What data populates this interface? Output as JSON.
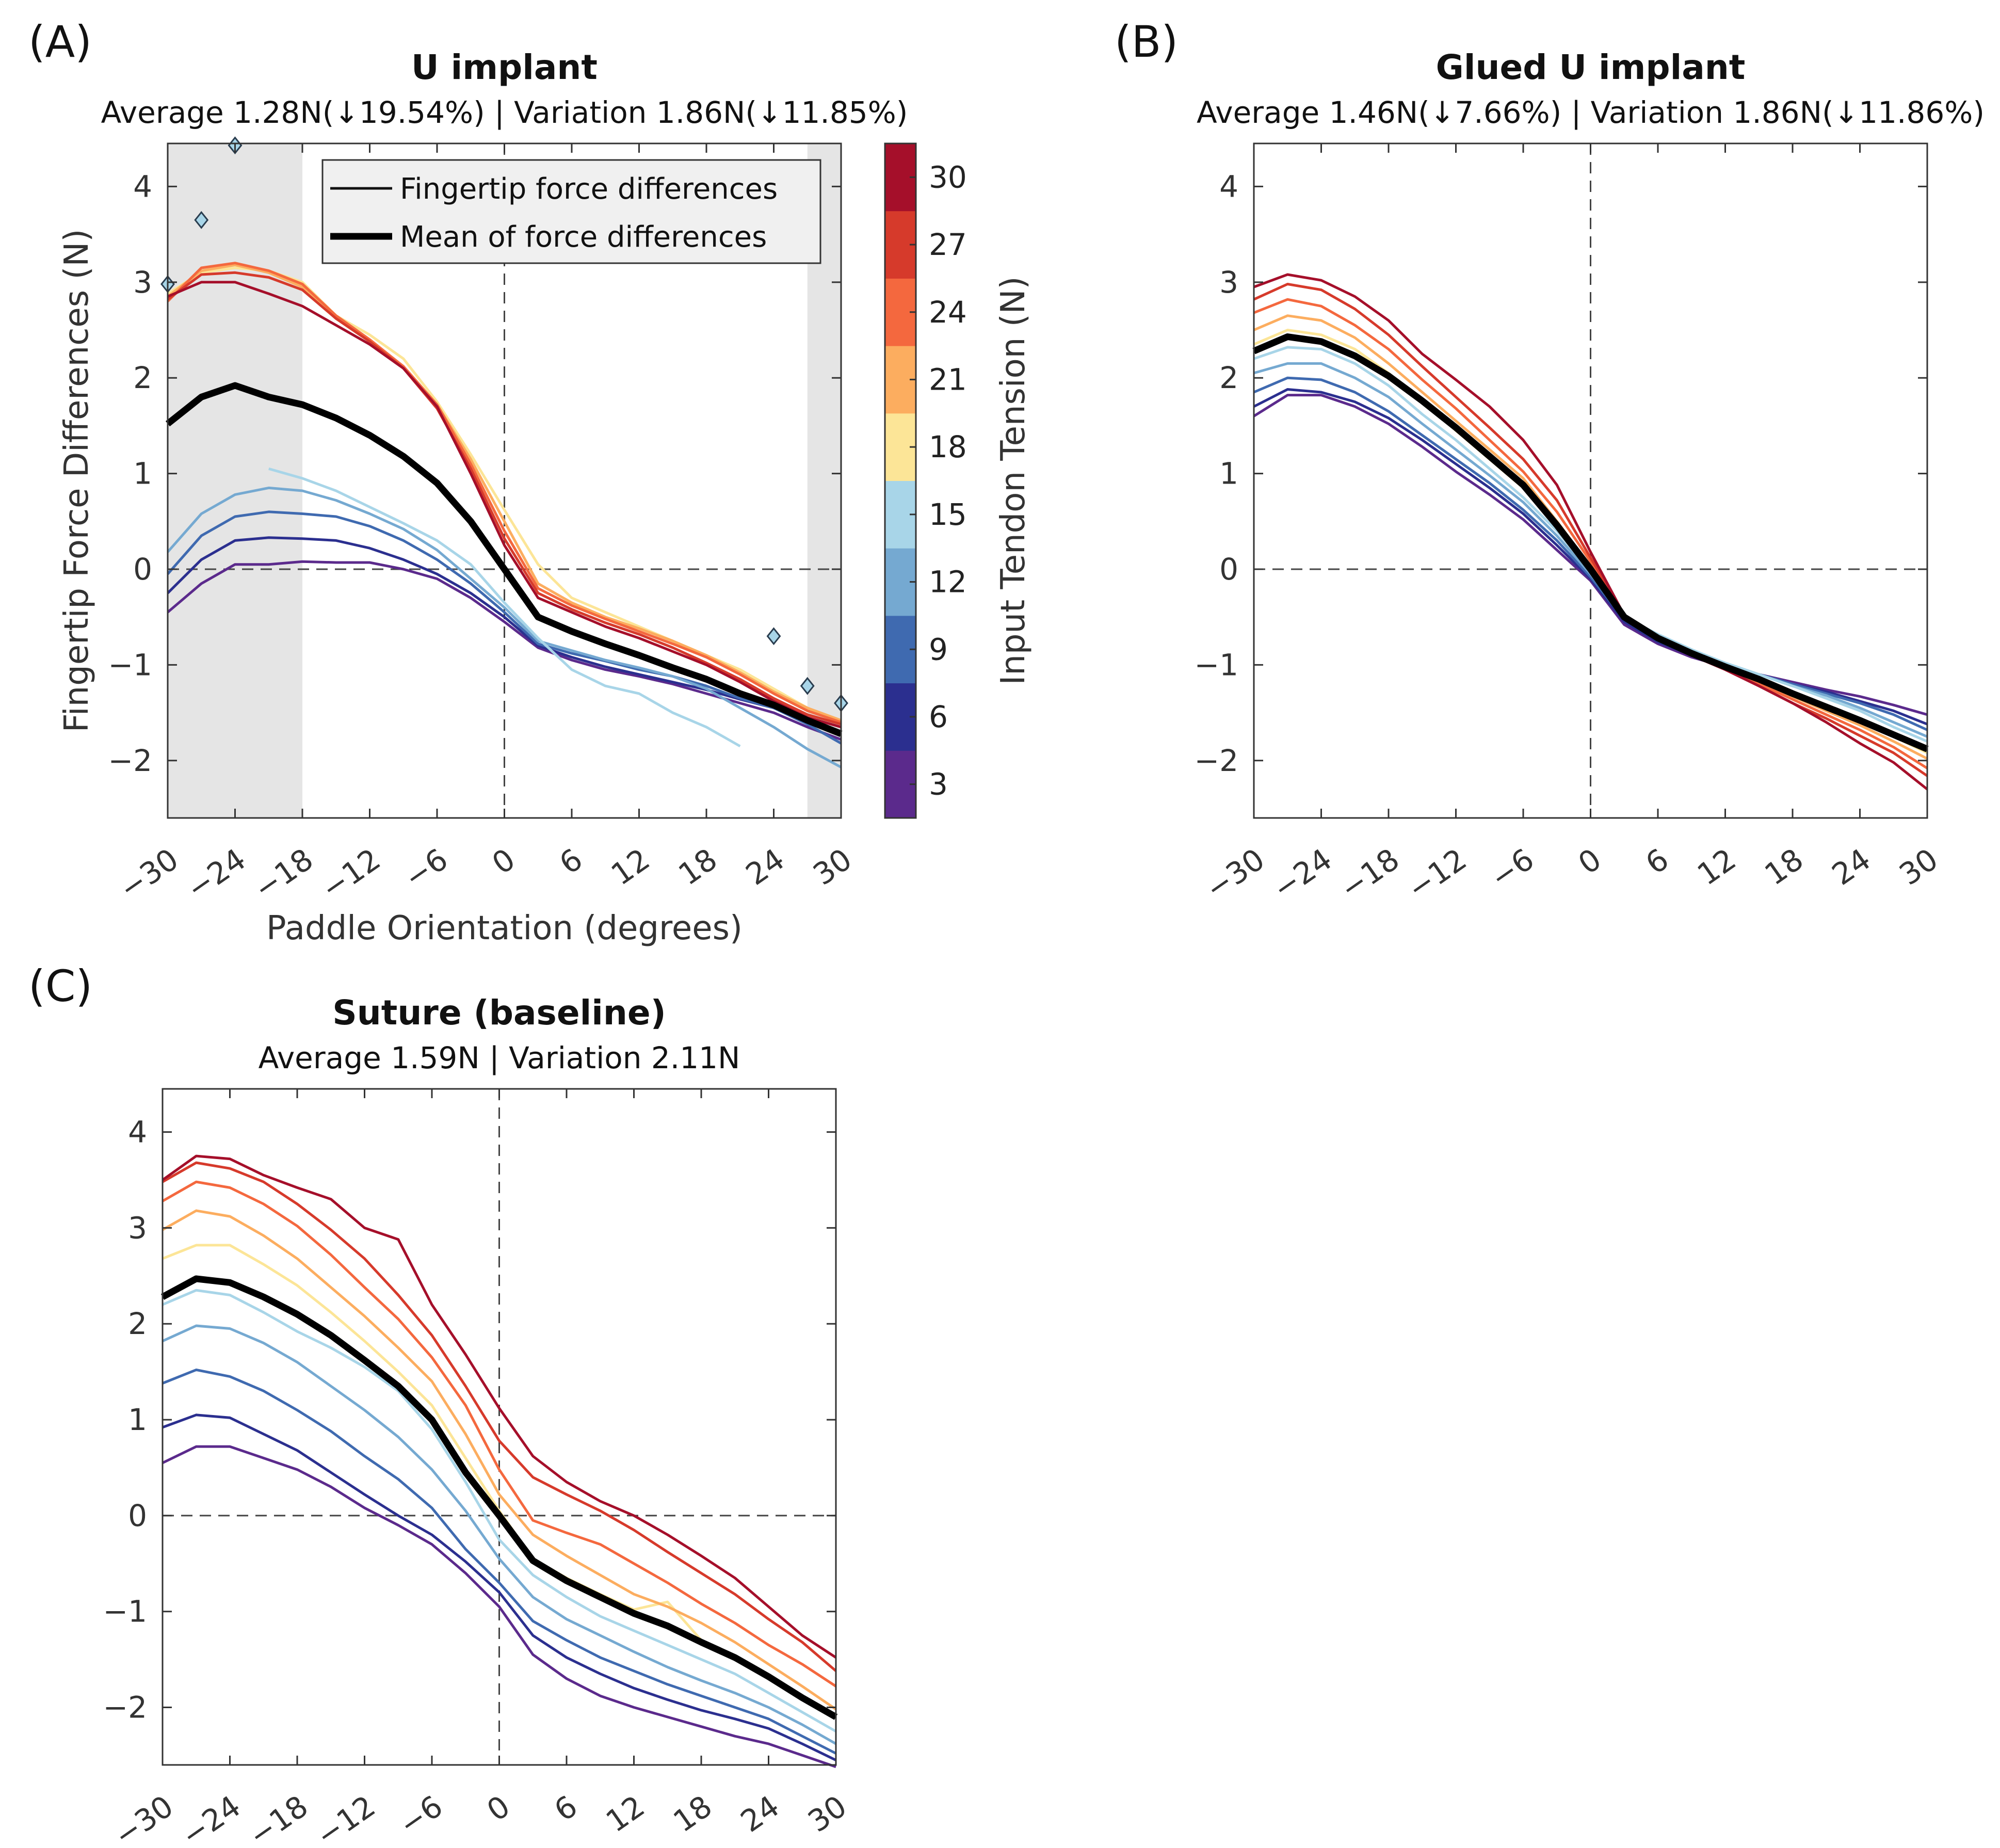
{
  "figure": {
    "colorbar": {
      "label": "Input Tendon Tension (N)",
      "ticks": [
        3,
        6,
        9,
        12,
        15,
        18,
        21,
        24,
        27,
        30
      ],
      "range": [
        1.5,
        31.5
      ],
      "colors": [
        "#5b2a8c",
        "#2b2f8f",
        "#3f6ab0",
        "#75a9d1",
        "#a8d5e8",
        "#fce597",
        "#fcad5f",
        "#f4683e",
        "#d63a2b",
        "#a50f2a"
      ]
    },
    "legend": {
      "thin": "Fingertip force differences",
      "thick": "Mean of force differences"
    },
    "axis_common": {
      "ylabel": "Fingertip Force Differences (N)",
      "xlabel": "Paddle Orientation (degrees)",
      "xticks": [
        "−30",
        "−24",
        "−18",
        "−12",
        "−6",
        "0",
        "6",
        "12",
        "18",
        "24",
        "30"
      ],
      "yticks": [
        "−2",
        "−1",
        "0",
        "1",
        "2",
        "3",
        "4"
      ]
    }
  },
  "chart_data": [
    {
      "type": "line",
      "panel": "(A)",
      "title": "U implant",
      "subtitle": "Average 1.28N(↓19.54%) | Variation 1.86N(↓11.85%)",
      "xlabel": "Paddle Orientation (degrees)",
      "ylabel": "Fingertip Force Differences (N)",
      "xlim": [
        -30,
        30
      ],
      "ylim": [
        -2.6,
        4.45
      ],
      "shaded_x_ranges": [
        [
          -30,
          -18
        ],
        [
          27,
          30
        ]
      ],
      "x": [
        -30,
        -27,
        -24,
        -21,
        -18,
        -15,
        -12,
        -9,
        -6,
        -3,
        0,
        3,
        6,
        9,
        12,
        15,
        18,
        21,
        24,
        27,
        30
      ],
      "series": [
        {
          "name": "3N",
          "tension": 3,
          "values": [
            -0.45,
            -0.15,
            0.05,
            0.05,
            0.08,
            0.07,
            0.07,
            0.0,
            -0.1,
            -0.3,
            -0.55,
            -0.82,
            -0.95,
            -1.05,
            -1.12,
            -1.2,
            -1.3,
            -1.4,
            -1.5,
            -1.65,
            -1.78
          ]
        },
        {
          "name": "6N",
          "tension": 6,
          "values": [
            -0.25,
            0.1,
            0.3,
            0.33,
            0.32,
            0.3,
            0.22,
            0.1,
            -0.05,
            -0.25,
            -0.5,
            -0.8,
            -0.92,
            -1.02,
            -1.1,
            -1.18,
            -1.26,
            -1.36,
            -1.45,
            -1.6,
            -1.72
          ]
        },
        {
          "name": "9N",
          "tension": 9,
          "values": [
            -0.05,
            0.35,
            0.55,
            0.6,
            0.58,
            0.55,
            0.45,
            0.3,
            0.1,
            -0.15,
            -0.45,
            -0.78,
            -0.88,
            -0.96,
            -1.05,
            -1.12,
            -1.22,
            -1.35,
            -1.45,
            -1.62,
            -1.82
          ]
        },
        {
          "name": "12N",
          "tension": 12,
          "values": [
            0.18,
            0.58,
            0.78,
            0.85,
            0.82,
            0.72,
            0.58,
            0.42,
            0.2,
            -0.1,
            -0.4,
            -0.75,
            -0.85,
            -0.95,
            -1.03,
            -1.12,
            -1.25,
            -1.45,
            -1.65,
            -1.88,
            -2.07
          ]
        },
        {
          "name": "15N",
          "tension": 15,
          "values": [
            null,
            null,
            null,
            1.05,
            0.95,
            0.82,
            0.65,
            0.48,
            0.3,
            0.05,
            -0.35,
            -0.72,
            -1.05,
            -1.22,
            -1.3,
            -1.5,
            -1.65,
            -1.85,
            null,
            null,
            null
          ]
        },
        {
          "name": "18N",
          "tension": 18,
          "values": [
            2.88,
            3.1,
            3.15,
            3.12,
            3.0,
            2.65,
            2.45,
            2.2,
            1.75,
            1.2,
            0.62,
            0.05,
            -0.3,
            -0.45,
            -0.6,
            -0.75,
            -0.9,
            -1.05,
            -1.25,
            -1.45,
            -1.6
          ]
        },
        {
          "name": "21N",
          "tension": 21,
          "values": [
            2.85,
            3.12,
            3.18,
            3.1,
            2.95,
            2.62,
            2.38,
            2.12,
            1.72,
            1.15,
            0.5,
            -0.15,
            -0.35,
            -0.5,
            -0.62,
            -0.75,
            -0.9,
            -1.08,
            -1.28,
            -1.45,
            -1.58
          ]
        },
        {
          "name": "24N",
          "tension": 24,
          "values": [
            2.8,
            3.15,
            3.2,
            3.12,
            2.98,
            2.65,
            2.4,
            2.12,
            1.72,
            1.1,
            0.4,
            -0.2,
            -0.38,
            -0.52,
            -0.65,
            -0.78,
            -0.92,
            -1.1,
            -1.3,
            -1.48,
            -1.6
          ]
        },
        {
          "name": "27N",
          "tension": 27,
          "values": [
            2.82,
            3.08,
            3.1,
            3.05,
            2.92,
            2.62,
            2.38,
            2.1,
            1.68,
            1.05,
            0.32,
            -0.25,
            -0.42,
            -0.56,
            -0.68,
            -0.82,
            -0.98,
            -1.15,
            -1.35,
            -1.52,
            -1.62
          ]
        },
        {
          "name": "30N",
          "tension": 30,
          "values": [
            2.85,
            3.0,
            3.0,
            2.88,
            2.75,
            2.55,
            2.35,
            2.1,
            1.7,
            1.0,
            0.25,
            -0.3,
            -0.45,
            -0.6,
            -0.72,
            -0.86,
            -1.0,
            -1.18,
            -1.38,
            -1.55,
            -1.65
          ]
        }
      ],
      "mean": [
        1.52,
        1.8,
        1.92,
        1.8,
        1.72,
        1.58,
        1.4,
        1.18,
        0.9,
        0.5,
        0.0,
        -0.5,
        -0.65,
        -0.78,
        -0.9,
        -1.03,
        -1.15,
        -1.3,
        -1.42,
        -1.58,
        -1.72
      ],
      "outliers": [
        [
          -30,
          2.98
        ],
        [
          -27,
          3.65
        ],
        [
          -24,
          4.43
        ],
        [
          24,
          -0.7
        ],
        [
          27,
          -1.22
        ],
        [
          30,
          -1.4
        ]
      ]
    },
    {
      "type": "line",
      "panel": "(B)",
      "title": "Glued U implant",
      "subtitle": "Average 1.46N(↓7.66%) | Variation 1.86N(↓11.86%)",
      "xlim": [
        -30,
        30
      ],
      "ylim": [
        -2.6,
        4.45
      ],
      "x": [
        -30,
        -27,
        -24,
        -21,
        -18,
        -15,
        -12,
        -9,
        -6,
        -3,
        0,
        3,
        6,
        9,
        12,
        15,
        18,
        21,
        24,
        27,
        30
      ],
      "series": [
        {
          "name": "3N",
          "tension": 3,
          "values": [
            1.6,
            1.82,
            1.82,
            1.7,
            1.52,
            1.28,
            1.02,
            0.78,
            0.52,
            0.2,
            -0.12,
            -0.58,
            -0.78,
            -0.92,
            -1.02,
            -1.1,
            -1.18,
            -1.26,
            -1.33,
            -1.42,
            -1.52
          ]
        },
        {
          "name": "6N",
          "tension": 6,
          "values": [
            1.7,
            1.88,
            1.85,
            1.75,
            1.58,
            1.35,
            1.1,
            0.85,
            0.58,
            0.25,
            -0.1,
            -0.55,
            -0.76,
            -0.9,
            -1.02,
            -1.1,
            -1.2,
            -1.28,
            -1.38,
            -1.48,
            -1.62
          ]
        },
        {
          "name": "9N",
          "tension": 9,
          "values": [
            1.85,
            2.0,
            1.98,
            1.85,
            1.65,
            1.4,
            1.15,
            0.9,
            0.62,
            0.3,
            -0.08,
            -0.52,
            -0.72,
            -0.88,
            -1.0,
            -1.1,
            -1.2,
            -1.3,
            -1.4,
            -1.52,
            -1.68
          ]
        },
        {
          "name": "12N",
          "tension": 12,
          "values": [
            2.05,
            2.15,
            2.15,
            2.0,
            1.8,
            1.52,
            1.25,
            0.98,
            0.7,
            0.35,
            -0.05,
            -0.5,
            -0.7,
            -0.85,
            -0.98,
            -1.1,
            -1.22,
            -1.32,
            -1.45,
            -1.6,
            -1.75
          ]
        },
        {
          "name": "15N",
          "tension": 15,
          "values": [
            2.2,
            2.32,
            2.3,
            2.15,
            1.92,
            1.62,
            1.35,
            1.05,
            0.75,
            0.4,
            -0.02,
            -0.5,
            -0.68,
            -0.84,
            -0.98,
            -1.1,
            -1.22,
            -1.35,
            -1.48,
            -1.65,
            -1.8
          ]
        },
        {
          "name": "18N",
          "tension": 18,
          "values": [
            2.35,
            2.5,
            2.45,
            2.3,
            2.05,
            1.75,
            1.45,
            1.15,
            0.85,
            0.45,
            0.0,
            -0.5,
            -0.72,
            -0.88,
            -1.02,
            -1.15,
            -1.3,
            -1.43,
            -1.58,
            -1.75,
            -1.92
          ]
        },
        {
          "name": "21N",
          "tension": 21,
          "values": [
            2.5,
            2.65,
            2.6,
            2.42,
            2.15,
            1.85,
            1.55,
            1.25,
            0.95,
            0.5,
            0.03,
            -0.5,
            -0.72,
            -0.88,
            -1.02,
            -1.18,
            -1.33,
            -1.48,
            -1.63,
            -1.8,
            -1.98
          ]
        },
        {
          "name": "24N",
          "tension": 24,
          "values": [
            2.68,
            2.82,
            2.75,
            2.55,
            2.3,
            1.98,
            1.68,
            1.35,
            1.02,
            0.6,
            0.08,
            -0.5,
            -0.72,
            -0.88,
            -1.04,
            -1.2,
            -1.36,
            -1.52,
            -1.68,
            -1.86,
            -2.08
          ]
        },
        {
          "name": "27N",
          "tension": 27,
          "values": [
            2.82,
            2.98,
            2.92,
            2.72,
            2.45,
            2.12,
            1.8,
            1.48,
            1.15,
            0.72,
            0.12,
            -0.48,
            -0.72,
            -0.9,
            -1.05,
            -1.22,
            -1.4,
            -1.56,
            -1.74,
            -1.92,
            -2.16
          ]
        },
        {
          "name": "30N",
          "tension": 30,
          "values": [
            2.95,
            3.08,
            3.02,
            2.85,
            2.6,
            2.25,
            1.98,
            1.7,
            1.35,
            0.88,
            0.18,
            -0.48,
            -0.72,
            -0.9,
            -1.05,
            -1.22,
            -1.4,
            -1.6,
            -1.82,
            -2.02,
            -2.3
          ]
        }
      ],
      "mean": [
        2.28,
        2.43,
        2.38,
        2.23,
        2.02,
        1.76,
        1.48,
        1.18,
        0.88,
        0.46,
        0.0,
        -0.5,
        -0.72,
        -0.88,
        -1.02,
        -1.15,
        -1.3,
        -1.44,
        -1.58,
        -1.73,
        -1.88
      ]
    },
    {
      "type": "line",
      "panel": "(C)",
      "title": "Suture (baseline)",
      "subtitle": "Average 1.59N | Variation 2.11N",
      "xlim": [
        -30,
        30
      ],
      "ylim": [
        -2.6,
        4.45
      ],
      "x": [
        -30,
        -27,
        -24,
        -21,
        -18,
        -15,
        -12,
        -9,
        -6,
        -3,
        0,
        3,
        6,
        9,
        12,
        15,
        18,
        21,
        24,
        27,
        30
      ],
      "series": [
        {
          "name": "3N",
          "tension": 3,
          "values": [
            0.55,
            0.72,
            0.72,
            0.6,
            0.48,
            0.3,
            0.08,
            -0.1,
            -0.3,
            -0.6,
            -0.95,
            -1.45,
            -1.7,
            -1.88,
            -2.0,
            -2.1,
            -2.2,
            -2.3,
            -2.38,
            -2.5,
            -2.62
          ]
        },
        {
          "name": "6N",
          "tension": 6,
          "values": [
            0.92,
            1.05,
            1.02,
            0.85,
            0.68,
            0.45,
            0.22,
            0.0,
            -0.2,
            -0.48,
            -0.8,
            -1.25,
            -1.48,
            -1.65,
            -1.8,
            -1.92,
            -2.03,
            -2.12,
            -2.22,
            -2.38,
            -2.55
          ]
        },
        {
          "name": "9N",
          "tension": 9,
          "values": [
            1.38,
            1.52,
            1.45,
            1.3,
            1.1,
            0.88,
            0.62,
            0.38,
            0.08,
            -0.35,
            -0.7,
            -1.1,
            -1.3,
            -1.48,
            -1.62,
            -1.76,
            -1.88,
            -2.0,
            -2.12,
            -2.3,
            -2.48
          ]
        },
        {
          "name": "12N",
          "tension": 12,
          "values": [
            1.82,
            1.98,
            1.95,
            1.8,
            1.6,
            1.35,
            1.1,
            0.82,
            0.48,
            0.05,
            -0.45,
            -0.85,
            -1.08,
            -1.25,
            -1.42,
            -1.58,
            -1.72,
            -1.85,
            -2.0,
            -2.18,
            -2.38
          ]
        },
        {
          "name": "15N",
          "tension": 15,
          "values": [
            2.2,
            2.35,
            2.3,
            2.12,
            1.92,
            1.75,
            1.55,
            1.3,
            0.9,
            0.35,
            -0.25,
            -0.62,
            -0.85,
            -1.05,
            -1.2,
            -1.35,
            -1.5,
            -1.65,
            -1.85,
            -2.05,
            -2.25
          ]
        },
        {
          "name": "18N",
          "tension": 18,
          "values": [
            2.68,
            2.82,
            2.82,
            2.62,
            2.4,
            2.12,
            1.82,
            1.5,
            1.15,
            0.6,
            0.05,
            -0.45,
            -0.65,
            -0.82,
            -0.98,
            -0.9,
            -1.3,
            -1.5,
            -1.7,
            -1.9,
            -2.1
          ]
        },
        {
          "name": "21N",
          "tension": 21,
          "values": [
            2.98,
            3.18,
            3.12,
            2.92,
            2.68,
            2.38,
            2.08,
            1.75,
            1.4,
            0.85,
            0.22,
            -0.2,
            -0.42,
            -0.62,
            -0.82,
            -0.95,
            -1.12,
            -1.32,
            -1.55,
            -1.78,
            -2.02
          ]
        },
        {
          "name": "24N",
          "tension": 24,
          "values": [
            3.28,
            3.48,
            3.42,
            3.25,
            3.02,
            2.72,
            2.38,
            2.05,
            1.65,
            1.15,
            0.48,
            -0.05,
            -0.18,
            -0.3,
            -0.5,
            -0.7,
            -0.92,
            -1.12,
            -1.35,
            -1.55,
            -1.78
          ]
        },
        {
          "name": "27N",
          "tension": 27,
          "values": [
            3.48,
            3.68,
            3.62,
            3.48,
            3.25,
            2.98,
            2.68,
            2.3,
            1.88,
            1.35,
            0.78,
            0.4,
            0.22,
            0.05,
            -0.15,
            -0.38,
            -0.6,
            -0.82,
            -1.08,
            -1.32,
            -1.62
          ]
        },
        {
          "name": "30N",
          "tension": 30,
          "values": [
            3.5,
            3.75,
            3.72,
            3.55,
            3.42,
            3.3,
            3.0,
            2.88,
            2.2,
            1.68,
            1.12,
            0.62,
            0.35,
            0.15,
            0.0,
            -0.2,
            -0.42,
            -0.65,
            -0.95,
            -1.25,
            -1.48
          ]
        }
      ],
      "mean": [
        2.28,
        2.47,
        2.43,
        2.28,
        2.1,
        1.88,
        1.62,
        1.35,
        1.0,
        0.45,
        0.0,
        -0.47,
        -0.68,
        -0.85,
        -1.02,
        -1.15,
        -1.32,
        -1.48,
        -1.68,
        -1.9,
        -2.1
      ]
    }
  ]
}
